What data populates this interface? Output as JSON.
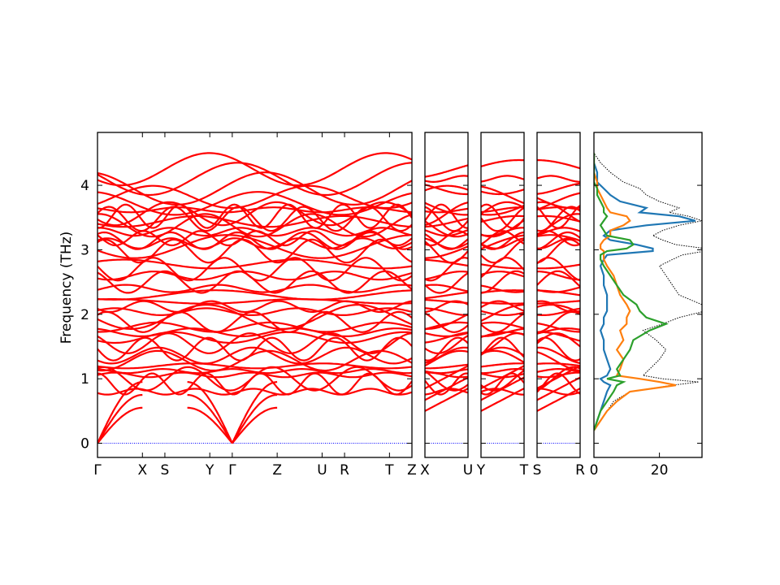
{
  "chart_data": {
    "type": "line",
    "title": "",
    "ylabel": "Frequency (THz)",
    "ylim": [
      -0.22,
      4.82
    ],
    "y_ticks": [
      0,
      1,
      2,
      3,
      4
    ],
    "band_color": "#ff0000",
    "zero_line_color": "#0000ff",
    "panels": [
      {
        "id": "p1",
        "xlim": [
          0,
          7
        ],
        "segments": [
          0,
          1,
          1.5,
          2.5,
          3,
          4,
          5,
          5.5,
          6.5,
          7
        ],
        "labels": [
          "Γ",
          "X",
          "S",
          "Y",
          "Γ",
          "Z",
          "U",
          "R",
          "T",
          "Z"
        ]
      },
      {
        "id": "p2",
        "xlim": [
          0,
          1
        ],
        "labels": [
          "X",
          "U"
        ]
      },
      {
        "id": "p3",
        "xlim": [
          0,
          1
        ],
        "labels": [
          "Y",
          "T"
        ]
      },
      {
        "id": "p4",
        "xlim": [
          0,
          1
        ],
        "labels": [
          "S",
          "R"
        ]
      }
    ],
    "dos": {
      "xlim": [
        0,
        33
      ],
      "x_ticks": [
        0,
        20
      ],
      "series_colors": [
        "#1f77b4",
        "#ff7f0e",
        "#2ca02c"
      ],
      "total_color": "#000000",
      "freq": [
        0.2,
        0.35,
        0.5,
        0.65,
        0.8,
        0.9,
        0.95,
        1.0,
        1.05,
        1.15,
        1.3,
        1.45,
        1.6,
        1.75,
        1.85,
        1.95,
        2.05,
        2.15,
        2.3,
        2.45,
        2.6,
        2.75,
        2.85,
        2.92,
        2.98,
        3.02,
        3.08,
        3.15,
        3.22,
        3.3,
        3.38,
        3.45,
        3.52,
        3.58,
        3.65,
        3.75,
        3.85,
        3.95,
        4.05,
        4.2,
        4.35,
        4.5
      ],
      "total": [
        0,
        2,
        4,
        6,
        11,
        24,
        32,
        21,
        15,
        17,
        20,
        22,
        19,
        15,
        21,
        26,
        34,
        33,
        26,
        24,
        22,
        20,
        24,
        27,
        34,
        34,
        25,
        21,
        18,
        21,
        26,
        33,
        29,
        23,
        26,
        20,
        16,
        14,
        9,
        5,
        2,
        0
      ],
      "blue": [
        0,
        1,
        2,
        3,
        4,
        5,
        3,
        2,
        4,
        5,
        4,
        3,
        3,
        2,
        3,
        3,
        4,
        4,
        4,
        3,
        3,
        2,
        3,
        4,
        18,
        18,
        13,
        5,
        3,
        5,
        16,
        31,
        26,
        14,
        16,
        8,
        5,
        3,
        1,
        1,
        0,
        0
      ],
      "orange": [
        0,
        2,
        4,
        7,
        11,
        25,
        20,
        14,
        7,
        8,
        9,
        7,
        9,
        8,
        10,
        10,
        11,
        10,
        8,
        7,
        6,
        4,
        3,
        3,
        3,
        2,
        2,
        3,
        5,
        5,
        9,
        11,
        10,
        5,
        4,
        3,
        2,
        1,
        1,
        0,
        0,
        0
      ],
      "green": [
        0,
        1,
        2,
        4,
        6,
        7,
        9,
        4,
        8,
        7,
        9,
        11,
        12,
        17,
        22,
        16,
        14,
        13,
        9,
        7,
        5,
        3,
        2,
        2,
        4,
        10,
        12,
        11,
        4,
        3,
        2,
        3,
        4,
        3,
        3,
        2,
        1,
        1,
        0,
        0,
        0,
        0
      ]
    }
  }
}
